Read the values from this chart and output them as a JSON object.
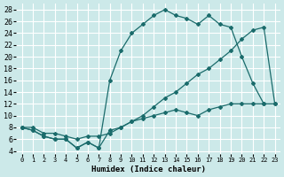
{
  "background_color": "#cce9e9",
  "grid_color": "#ffffff",
  "line_color": "#1a6b6b",
  "xlim": [
    -0.5,
    23.5
  ],
  "ylim": [
    3.5,
    29
  ],
  "xticks": [
    0,
    1,
    2,
    3,
    4,
    5,
    6,
    7,
    8,
    9,
    10,
    11,
    12,
    13,
    14,
    15,
    16,
    17,
    18,
    19,
    20,
    21,
    22,
    23
  ],
  "yticks": [
    4,
    6,
    8,
    10,
    12,
    14,
    16,
    18,
    20,
    22,
    24,
    26,
    28
  ],
  "xlabel": "Humidex (Indice chaleur)",
  "line1_x": [
    0,
    1,
    2,
    3,
    4,
    5,
    6,
    7,
    8,
    9,
    10,
    11,
    12,
    13,
    14,
    15,
    16,
    17,
    18,
    19,
    20,
    21,
    22,
    23
  ],
  "line1_y": [
    8,
    7.5,
    6.5,
    6,
    6,
    4.5,
    5.5,
    4.5,
    7.5,
    8,
    9,
    9.5,
    10,
    10.5,
    11,
    10.5,
    10,
    11,
    11.5,
    12,
    12,
    12,
    12,
    12
  ],
  "line2_x": [
    0,
    1,
    2,
    3,
    4,
    5,
    6,
    7,
    8,
    9,
    10,
    11,
    12,
    13,
    14,
    15,
    16,
    17,
    18,
    19,
    20,
    21,
    22
  ],
  "line2_y": [
    8,
    7.5,
    6.5,
    6,
    6,
    4.5,
    5.5,
    4.5,
    16,
    21,
    24,
    25.5,
    27,
    28,
    27,
    26.5,
    25.5,
    27,
    25.5,
    25,
    20,
    15.5,
    12
  ],
  "line3_x": [
    0,
    1,
    2,
    3,
    4,
    5,
    6,
    7,
    8,
    9,
    10,
    11,
    12,
    13,
    14,
    15,
    16,
    17,
    18,
    19,
    20,
    21,
    22,
    23
  ],
  "line3_y": [
    8,
    8,
    7,
    7,
    6.5,
    6,
    6.5,
    6.5,
    7,
    8,
    9,
    10,
    11.5,
    13,
    14,
    15.5,
    17,
    18,
    19.5,
    21,
    23,
    24.5,
    25,
    12
  ]
}
